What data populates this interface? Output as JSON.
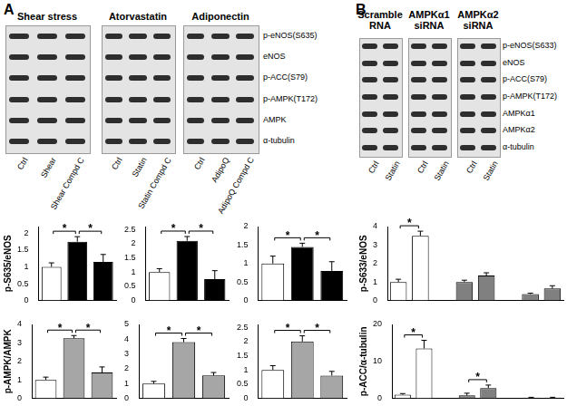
{
  "panels": [
    {
      "label": "A",
      "row_labels": [
        "p-eNOS(S635)",
        "eNOS",
        "p-ACC(S79)",
        "p-AMPK(T172)",
        "AMPK",
        "α-tubulin"
      ],
      "blots": [
        {
          "title": "Shear stress",
          "lanes": [
            "Ctrl",
            "Shear",
            "Shear Compd C"
          ]
        },
        {
          "title": "Atorvastatin",
          "lanes": [
            "Ctrl",
            "Statin",
            "Statin Compd C"
          ]
        },
        {
          "title": "Adiponectin",
          "lanes": [
            "Ctrl",
            "AdipoQ",
            "AdipoQ Compd C"
          ]
        }
      ]
    },
    {
      "label": "B",
      "row_labels": [
        "p-eNOS(S633)",
        "eNOS",
        "p-ACC(S79)",
        "p-AMPK(T172)",
        "AMPKα1",
        "AMPKα2",
        "α-tubulin"
      ],
      "blots": [
        {
          "title": "Scramble RNA",
          "lanes": [
            "Ctrl",
            "Statin"
          ]
        },
        {
          "title": "AMPKα1 siRNA",
          "lanes": [
            "Ctrl",
            "Statin"
          ]
        },
        {
          "title": "AMPKα2 siRNA",
          "lanes": [
            "Ctrl",
            "Statin"
          ]
        }
      ]
    }
  ],
  "chart_data": [
    {
      "type": "bar",
      "ylabel": "p-S635/eNOS",
      "categories": [
        null,
        null,
        null
      ],
      "values": [
        1.0,
        1.75,
        1.15
      ],
      "errors": [
        0.12,
        0.15,
        0.22
      ],
      "colors": [
        "#ffffff",
        "#000000",
        "#000000"
      ],
      "ylim": [
        0,
        2.2
      ],
      "yticks": [
        0,
        0.5,
        1,
        1.5,
        2
      ],
      "grid": false,
      "tick_labels": "y",
      "annotations": [
        {
          "text": "*",
          "between": [
            0,
            1
          ]
        },
        {
          "text": "*",
          "between": [
            1,
            2
          ]
        }
      ]
    },
    {
      "type": "bar",
      "categories": [
        null,
        null,
        null
      ],
      "values": [
        1.0,
        2.1,
        0.75
      ],
      "errors": [
        0.12,
        0.15,
        0.3
      ],
      "colors": [
        "#ffffff",
        "#000000",
        "#000000"
      ],
      "ylim": [
        0,
        2.6
      ],
      "yticks": [
        0,
        0.5,
        1,
        1.5,
        2,
        2.5
      ],
      "grid": false,
      "tick_labels": "y",
      "annotations": [
        {
          "text": "*",
          "between": [
            0,
            1
          ]
        },
        {
          "text": "*",
          "between": [
            1,
            2
          ]
        }
      ]
    },
    {
      "type": "bar",
      "categories": [
        null,
        null,
        null
      ],
      "values": [
        1.0,
        1.45,
        0.8
      ],
      "errors": [
        0.2,
        0.1,
        0.25
      ],
      "colors": [
        "#ffffff",
        "#000000",
        "#000000"
      ],
      "ylim": [
        0,
        2
      ],
      "yticks": [
        0,
        0.5,
        1,
        1.5,
        2
      ],
      "grid": false,
      "tick_labels": "y",
      "annotations": [
        {
          "text": "*",
          "between": [
            0,
            1
          ]
        },
        {
          "text": "*",
          "between": [
            1,
            2
          ]
        }
      ]
    },
    {
      "type": "bar",
      "ylabel": "p-AMPK/AMPK",
      "categories": [
        null,
        null,
        null
      ],
      "values": [
        1.0,
        3.25,
        1.4
      ],
      "errors": [
        0.15,
        0.15,
        0.3
      ],
      "colors": [
        "#ffffff",
        "#a6a6a6",
        "#a6a6a6"
      ],
      "ylim": [
        0,
        4
      ],
      "yticks": [
        0,
        1,
        2,
        3,
        4
      ],
      "grid": false,
      "tick_labels": "y",
      "annotations": [
        {
          "text": "*",
          "between": [
            0,
            1
          ]
        },
        {
          "text": "*",
          "between": [
            1,
            2
          ]
        }
      ]
    },
    {
      "type": "bar",
      "categories": [
        null,
        null,
        null
      ],
      "values": [
        1.0,
        3.8,
        1.55
      ],
      "errors": [
        0.15,
        0.25,
        0.2
      ],
      "colors": [
        "#ffffff",
        "#a6a6a6",
        "#a6a6a6"
      ],
      "ylim": [
        0,
        5
      ],
      "yticks": [
        0,
        1,
        2,
        3,
        4,
        5
      ],
      "grid": false,
      "tick_labels": "y",
      "annotations": [
        {
          "text": "*",
          "between": [
            0,
            1
          ]
        },
        {
          "text": "*",
          "between": [
            1,
            2
          ]
        }
      ]
    },
    {
      "type": "bar",
      "categories": [
        null,
        null,
        null
      ],
      "values": [
        1.0,
        2.0,
        0.8
      ],
      "errors": [
        0.15,
        0.2,
        0.15
      ],
      "colors": [
        "#ffffff",
        "#a6a6a6",
        "#a6a6a6"
      ],
      "ylim": [
        0,
        2.6
      ],
      "yticks": [
        0,
        0.5,
        1,
        1.5,
        2,
        2.5
      ],
      "grid": false,
      "tick_labels": "y",
      "annotations": [
        {
          "text": "*",
          "between": [
            0,
            1
          ]
        },
        {
          "text": "*",
          "between": [
            1,
            2
          ]
        }
      ]
    },
    {
      "type": "bar",
      "ylabel": "p-S633/eNOS",
      "categories": [
        null,
        null,
        null,
        null,
        null,
        null,
        null,
        null
      ],
      "values": [
        1.0,
        3.5,
        null,
        1.0,
        1.35,
        null,
        0.35,
        0.65
      ],
      "errors": [
        0.15,
        0.25,
        null,
        0.1,
        0.15,
        null,
        0.05,
        0.15
      ],
      "colors": [
        "#ffffff",
        "#ffffff",
        "#808080",
        "#808080",
        "#808080",
        "#808080",
        "#808080",
        "#808080"
      ],
      "ylim": [
        0,
        4
      ],
      "yticks": [
        0,
        1,
        2,
        3,
        4
      ],
      "grid": false,
      "tick_labels": "y",
      "annotations": [
        {
          "text": "*",
          "between": [
            0,
            1
          ]
        }
      ]
    },
    {
      "type": "bar",
      "ylabel": "p-ACC/α-tubulin",
      "categories": [
        null,
        null,
        null,
        null,
        null,
        null,
        null,
        null
      ],
      "values": [
        1.0,
        13.5,
        null,
        0.8,
        2.8,
        null,
        0.2,
        0.2
      ],
      "errors": [
        0.3,
        2.2,
        null,
        0.6,
        0.8,
        null,
        0.1,
        0.1
      ],
      "colors": [
        "#ffffff",
        "#ffffff",
        "#808080",
        "#808080",
        "#808080",
        "#808080",
        "#808080",
        "#808080"
      ],
      "ylim": [
        0,
        20
      ],
      "yticks": [
        0,
        10,
        20
      ],
      "grid": false,
      "tick_labels": "y",
      "annotations": [
        {
          "text": "*",
          "between": [
            0,
            1
          ]
        },
        {
          "text": "*",
          "between": [
            3,
            4
          ]
        }
      ]
    }
  ]
}
